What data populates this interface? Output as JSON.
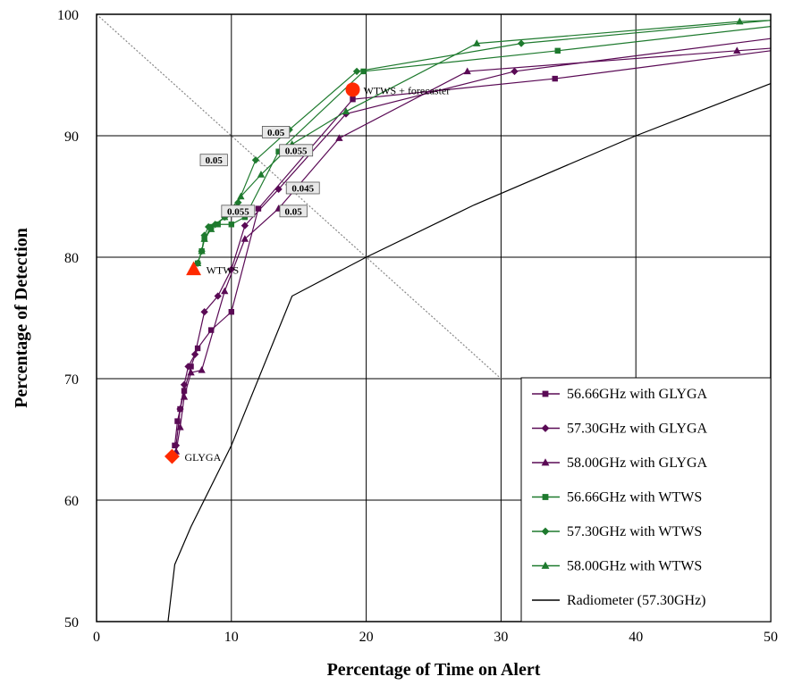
{
  "chart_data": {
    "type": "line",
    "xlabel": "Percentage of Time on Alert",
    "ylabel": "Percentage of Detection",
    "xlim": [
      0,
      50
    ],
    "ylim": [
      50,
      100
    ],
    "xticks": [
      "0",
      "10",
      "20",
      "30",
      "40",
      "50"
    ],
    "yticks": [
      "50",
      "60",
      "70",
      "80",
      "90",
      "100"
    ],
    "grid": true,
    "legend_position": "bottom-right",
    "series": [
      {
        "name": "56.66GHz with GLYGA",
        "color": "#5a0a55",
        "marker": "square",
        "x": [
          5.8,
          6.0,
          6.2,
          6.5,
          7.0,
          7.5,
          8.5,
          10.0,
          12.0,
          19.0,
          34.0,
          50.0
        ],
        "y": [
          64.5,
          66.5,
          67.5,
          69.0,
          71.0,
          72.5,
          74.0,
          75.5,
          84.0,
          93.0,
          94.7,
          97.0
        ]
      },
      {
        "name": "57.30GHz with GLYGA",
        "color": "#5a0a55",
        "marker": "diamond",
        "x": [
          5.9,
          6.2,
          6.5,
          6.8,
          7.3,
          8.0,
          9.0,
          10.0,
          11.0,
          13.5,
          18.5,
          31.0,
          50.0
        ],
        "y": [
          64.5,
          67.5,
          69.5,
          71.0,
          72.0,
          75.5,
          76.8,
          79.0,
          82.6,
          85.6,
          91.8,
          95.3,
          98.0
        ]
      },
      {
        "name": "58.00GHz with GLYGA",
        "color": "#5a0a55",
        "marker": "triangle",
        "x": [
          5.9,
          6.2,
          6.5,
          7.0,
          7.8,
          9.5,
          11.0,
          13.5,
          18.0,
          27.5,
          47.5,
          50.0
        ],
        "y": [
          64.0,
          66.0,
          68.5,
          70.5,
          70.7,
          77.2,
          81.5,
          84.0,
          89.8,
          95.3,
          97.0,
          97.2
        ]
      },
      {
        "name": "56.66GHz with WTWS",
        "color": "#1e7a2e",
        "marker": "square",
        "x": [
          7.5,
          7.8,
          8.0,
          8.5,
          9.0,
          10.0,
          11.0,
          13.5,
          19.8,
          34.2,
          50.0
        ],
        "y": [
          79.5,
          80.5,
          81.5,
          82.5,
          82.7,
          82.7,
          83.3,
          88.7,
          95.3,
          97.0,
          99.0
        ]
      },
      {
        "name": "57.30GHz with WTWS",
        "color": "#1e7a2e",
        "marker": "diamond",
        "x": [
          7.5,
          7.8,
          8.0,
          8.3,
          8.8,
          9.5,
          10.5,
          11.8,
          14.3,
          19.3,
          31.5,
          50.0
        ],
        "y": [
          79.5,
          80.5,
          81.8,
          82.5,
          82.7,
          83.3,
          84.5,
          88.0,
          90.5,
          95.3,
          97.6,
          99.5
        ]
      },
      {
        "name": "58.00GHz with WTWS",
        "color": "#1e7a2e",
        "marker": "triangle",
        "x": [
          7.5,
          7.8,
          8.0,
          8.5,
          9.5,
          10.7,
          12.2,
          14.5,
          18.5,
          28.2,
          47.7,
          50.0
        ],
        "y": [
          79.5,
          80.5,
          81.5,
          82.3,
          83.3,
          85.0,
          86.8,
          89.3,
          92.0,
          97.6,
          99.4,
          99.5
        ]
      },
      {
        "name": "Radiometer (57.30GHz)",
        "color": "#000000",
        "marker": "none",
        "x": [
          5.3,
          5.8,
          7.0,
          10.0,
          14.5,
          20.0,
          28.0,
          40.0,
          50.0
        ],
        "y": [
          50.0,
          54.7,
          57.8,
          64.5,
          76.8,
          80.0,
          84.3,
          90.0,
          94.3
        ]
      }
    ],
    "reference_points": [
      {
        "label": "GLYGA",
        "x": 5.6,
        "y": 63.6,
        "marker": "diamond",
        "color": "#ff2a00"
      },
      {
        "label": "WTWS",
        "x": 7.2,
        "y": 79.0,
        "marker": "triangle",
        "color": "#ff2a00"
      },
      {
        "label": "WTWS + forecaster",
        "x": 19.0,
        "y": 93.8,
        "marker": "circle",
        "color": "#ff2a00"
      }
    ],
    "annotations": [
      {
        "text": "0.05",
        "x": 13.3,
        "y": 90.3
      },
      {
        "text": "0.055",
        "x": 14.8,
        "y": 88.8
      },
      {
        "text": "0.05",
        "x": 8.7,
        "y": 88.0
      },
      {
        "text": "0.045",
        "x": 15.3,
        "y": 85.7
      },
      {
        "text": "0.055",
        "x": 10.5,
        "y": 83.8
      },
      {
        "text": "0.05",
        "x": 14.6,
        "y": 83.8
      }
    ]
  },
  "colors": {
    "glyga": "#5a0a55",
    "wtws": "#1e7a2e",
    "reference": "#ff2a00",
    "radiometer": "#000000"
  }
}
